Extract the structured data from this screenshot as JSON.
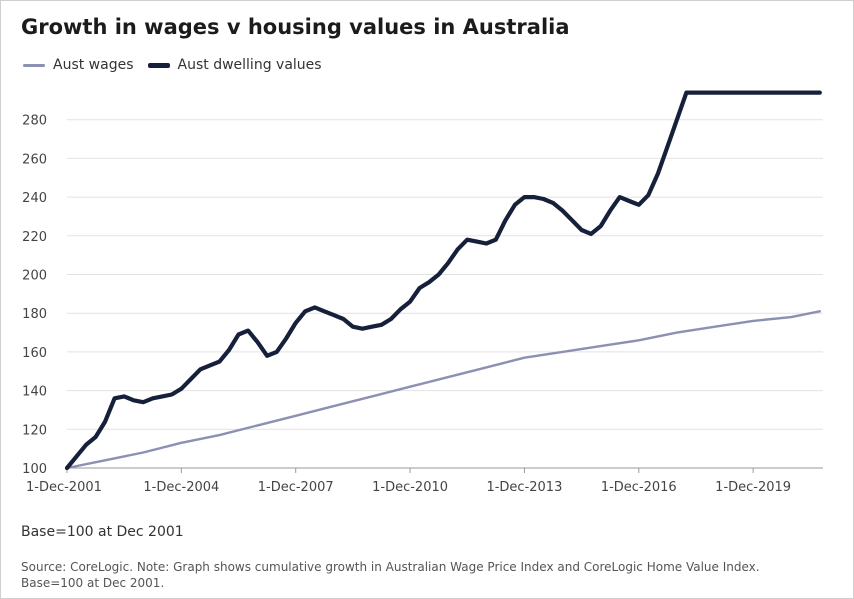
{
  "chart_data": {
    "type": "line",
    "title": "Growth in wages v housing values in Australia",
    "base_note": "Base=100 at Dec 2001",
    "source": "Source: CoreLogic. Note: Graph shows cumulative growth in Australian Wage Price Index and CoreLogic Home Value Index. Base=100 at Dec 2001.",
    "legend_position": "top-left",
    "grid": true,
    "xlabel": "",
    "ylabel": "",
    "x_range": [
      2001.917,
      2021.75
    ],
    "ylim": [
      100,
      300
    ],
    "y_ticks": [
      100,
      120,
      140,
      160,
      180,
      200,
      220,
      240,
      260,
      280
    ],
    "x_ticks": [
      {
        "label": "1-Dec-2001",
        "x": 2001.917
      },
      {
        "label": "1-Dec-2004",
        "x": 2004.917
      },
      {
        "label": "1-Dec-2007",
        "x": 2007.917
      },
      {
        "label": "1-Dec-2010",
        "x": 2010.917
      },
      {
        "label": "1-Dec-2013",
        "x": 2013.917
      },
      {
        "label": "1-Dec-2016",
        "x": 2016.917
      },
      {
        "label": "1-Dec-2019",
        "x": 2019.917
      }
    ],
    "series": [
      {
        "name": "Aust wages",
        "color": "#8c90b3",
        "x": [
          2001.917,
          2002.917,
          2003.917,
          2004.917,
          2005.917,
          2006.917,
          2007.917,
          2008.917,
          2009.917,
          2010.917,
          2011.917,
          2012.917,
          2013.917,
          2014.917,
          2015.917,
          2016.917,
          2017.917,
          2018.917,
          2019.917,
          2020.917,
          2021.667
        ],
        "values": [
          100,
          104,
          108,
          113,
          117,
          122,
          127,
          132,
          137,
          142,
          147,
          152,
          157,
          160,
          163,
          166,
          170,
          173,
          176,
          178,
          181
        ]
      },
      {
        "name": "Aust dwelling values",
        "color": "#17203b",
        "x": [
          2001.917,
          2002.167,
          2002.417,
          2002.667,
          2002.917,
          2003.167,
          2003.417,
          2003.667,
          2003.917,
          2004.167,
          2004.417,
          2004.667,
          2004.917,
          2005.167,
          2005.417,
          2005.667,
          2005.917,
          2006.167,
          2006.417,
          2006.667,
          2006.917,
          2007.167,
          2007.417,
          2007.667,
          2007.917,
          2008.167,
          2008.417,
          2008.667,
          2008.917,
          2009.167,
          2009.417,
          2009.667,
          2009.917,
          2010.167,
          2010.417,
          2010.667,
          2010.917,
          2011.167,
          2011.417,
          2011.667,
          2011.917,
          2012.167,
          2012.417,
          2012.667,
          2012.917,
          2013.167,
          2013.417,
          2013.667,
          2013.917,
          2014.167,
          2014.417,
          2014.667,
          2014.917,
          2015.167,
          2015.417,
          2015.667,
          2015.917,
          2016.167,
          2016.417,
          2016.667,
          2016.917,
          2017.167,
          2017.417,
          2017.667,
          2017.917,
          2018.167,
          2018.417,
          2018.667,
          2018.917,
          2019.167,
          2019.417,
          2019.667,
          2019.917,
          2020.167,
          2020.417,
          2020.667,
          2020.917,
          2021.167,
          2021.417,
          2021.667
        ],
        "values": [
          100,
          106,
          112,
          116,
          124,
          136,
          137,
          135,
          134,
          136,
          137,
          138,
          141,
          146,
          151,
          153,
          155,
          161,
          169,
          171,
          165,
          158,
          160,
          167,
          175,
          181,
          183,
          181,
          179,
          177,
          173,
          172,
          173,
          174,
          177,
          182,
          186,
          193,
          196,
          200,
          206,
          213,
          218,
          217,
          216,
          218,
          228,
          236,
          240,
          240,
          239,
          237,
          233,
          228,
          223,
          221,
          225,
          233,
          240,
          238,
          236,
          241,
          252,
          266,
          280,
          294,
          294,
          294,
          294,
          294,
          294,
          294,
          294,
          294,
          294,
          294,
          294,
          294,
          294,
          294
        ]
      }
    ]
  },
  "legend": {
    "wages_label": "Aust wages",
    "dwelling_label": "Aust dwelling values"
  }
}
